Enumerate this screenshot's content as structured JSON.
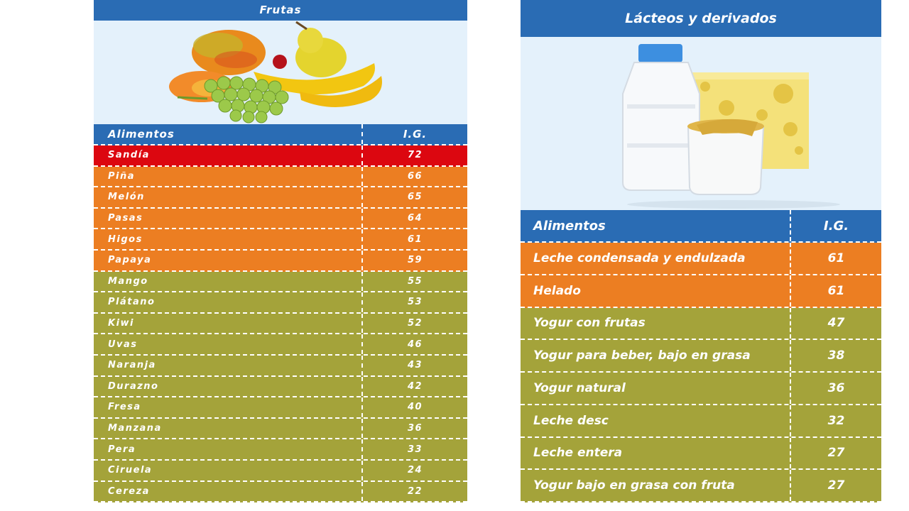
{
  "frutas": {
    "title": "Frutas",
    "header": {
      "food": "Alimentos",
      "gi": "I.G."
    },
    "rows": [
      {
        "name": "Sandía",
        "gi": "72",
        "level": "high"
      },
      {
        "name": "Piña",
        "gi": "66",
        "level": "medium"
      },
      {
        "name": "Melón",
        "gi": "65",
        "level": "medium"
      },
      {
        "name": "Pasas",
        "gi": "64",
        "level": "medium"
      },
      {
        "name": "Higos",
        "gi": "61",
        "level": "medium"
      },
      {
        "name": "Papaya",
        "gi": "59",
        "level": "medium"
      },
      {
        "name": "Mango",
        "gi": "55",
        "level": "low"
      },
      {
        "name": "Plátano",
        "gi": "53",
        "level": "low"
      },
      {
        "name": "Kiwi",
        "gi": "52",
        "level": "low"
      },
      {
        "name": "Uvas",
        "gi": "46",
        "level": "low"
      },
      {
        "name": "Naranja",
        "gi": "43",
        "level": "low"
      },
      {
        "name": "Durazno",
        "gi": "42",
        "level": "low"
      },
      {
        "name": "Fresa",
        "gi": "40",
        "level": "low"
      },
      {
        "name": "Manzana",
        "gi": "36",
        "level": "low"
      },
      {
        "name": "Pera",
        "gi": "33",
        "level": "low"
      },
      {
        "name": "Ciruela",
        "gi": "24",
        "level": "low"
      },
      {
        "name": "Cereza",
        "gi": "22",
        "level": "low"
      }
    ]
  },
  "lacteos": {
    "title": "Lácteos y derivados",
    "header": {
      "food": "Alimentos",
      "gi": "I.G."
    },
    "rows": [
      {
        "name": "Leche condensada y endulzada",
        "gi": "61",
        "level": "medium"
      },
      {
        "name": "Helado",
        "gi": "61",
        "level": "medium"
      },
      {
        "name": "Yogur con frutas",
        "gi": "47",
        "level": "low"
      },
      {
        "name": "Yogur para beber, bajo en grasa",
        "gi": "38",
        "level": "low"
      },
      {
        "name": "Yogur natural",
        "gi": "36",
        "level": "low"
      },
      {
        "name": "Leche desc",
        "gi": "32",
        "level": "low"
      },
      {
        "name": "Leche entera",
        "gi": "27",
        "level": "low"
      },
      {
        "name": "Yogur bajo en grasa con fruta",
        "gi": "27",
        "level": "low"
      }
    ]
  },
  "colors": {
    "header": "#2a6cb4",
    "high": "#dc0710",
    "medium": "#ec7e22",
    "low": "#a4a33a"
  }
}
